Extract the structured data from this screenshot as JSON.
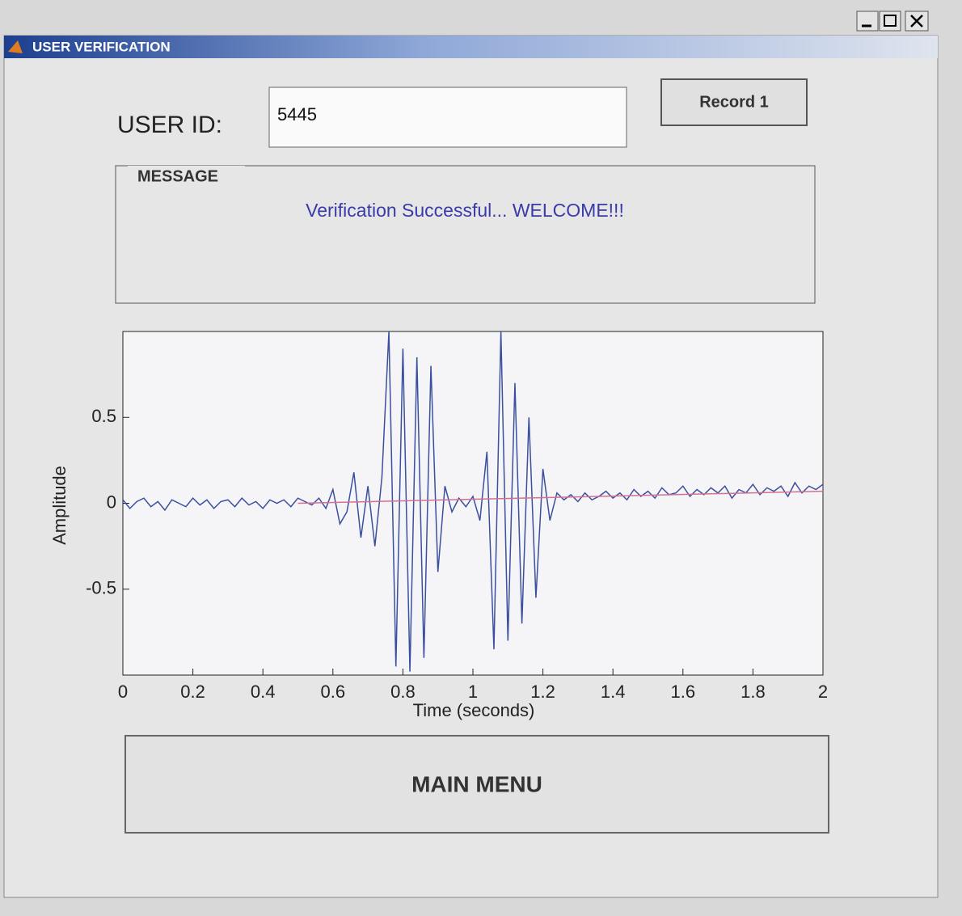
{
  "window": {
    "title": "USER VERIFICATION"
  },
  "user_id": {
    "label": "USER ID:",
    "value": "5445"
  },
  "record_button": {
    "label": "Record 1"
  },
  "message": {
    "title": "MESSAGE",
    "text": "Verification Successful... WELCOME!!!"
  },
  "chart_data": {
    "type": "line",
    "xlabel": "Time (seconds)",
    "ylabel": "Amplitude",
    "xlim": [
      0,
      2
    ],
    "ylim": [
      -1,
      1
    ],
    "xticks": [
      0,
      0.2,
      0.4,
      0.6,
      0.8,
      1,
      1.2,
      1.4,
      1.6,
      1.8,
      2
    ],
    "yticks": [
      -0.5,
      0,
      0.5
    ],
    "series": [
      {
        "color": "#3b4f9e",
        "x": [
          0,
          0.02,
          0.04,
          0.06,
          0.08,
          0.1,
          0.12,
          0.14,
          0.16,
          0.18,
          0.2,
          0.22,
          0.24,
          0.26,
          0.28,
          0.3,
          0.32,
          0.34,
          0.36,
          0.38,
          0.4,
          0.42,
          0.44,
          0.46,
          0.48,
          0.5,
          0.52,
          0.54,
          0.56,
          0.58,
          0.6,
          0.62,
          0.64,
          0.66,
          0.68,
          0.7,
          0.72,
          0.74,
          0.76,
          0.78,
          0.8,
          0.82,
          0.84,
          0.86,
          0.88,
          0.9,
          0.92,
          0.94,
          0.96,
          0.98,
          1,
          1.02,
          1.04,
          1.06,
          1.08,
          1.1,
          1.12,
          1.14,
          1.16,
          1.18,
          1.2,
          1.22,
          1.24,
          1.26,
          1.28,
          1.3,
          1.32,
          1.34,
          1.36,
          1.38,
          1.4,
          1.42,
          1.44,
          1.46,
          1.48,
          1.5,
          1.52,
          1.54,
          1.56,
          1.58,
          1.6,
          1.62,
          1.64,
          1.66,
          1.68,
          1.7,
          1.72,
          1.74,
          1.76,
          1.78,
          1.8,
          1.82,
          1.84,
          1.86,
          1.88,
          1.9,
          1.92,
          1.94,
          1.96,
          1.98,
          2
        ],
        "values": [
          0.02,
          -0.03,
          0.01,
          0.03,
          -0.02,
          0.01,
          -0.04,
          0.02,
          0.0,
          -0.02,
          0.03,
          -0.01,
          0.02,
          -0.03,
          0.01,
          0.02,
          -0.02,
          0.03,
          -0.01,
          0.01,
          -0.03,
          0.02,
          0.0,
          0.02,
          -0.02,
          0.03,
          0.01,
          -0.01,
          0.03,
          -0.03,
          0.08,
          -0.12,
          -0.05,
          0.18,
          -0.2,
          0.1,
          -0.25,
          0.15,
          1.0,
          -0.95,
          0.9,
          -0.98,
          0.85,
          -0.9,
          0.8,
          -0.4,
          0.1,
          -0.05,
          0.03,
          -0.02,
          0.04,
          -0.1,
          0.3,
          -0.85,
          1.0,
          -0.8,
          0.7,
          -0.7,
          0.5,
          -0.55,
          0.2,
          -0.1,
          0.06,
          0.02,
          0.05,
          0.01,
          0.06,
          0.02,
          0.04,
          0.07,
          0.03,
          0.06,
          0.02,
          0.08,
          0.04,
          0.07,
          0.03,
          0.09,
          0.05,
          0.06,
          0.1,
          0.04,
          0.08,
          0.05,
          0.09,
          0.06,
          0.1,
          0.03,
          0.08,
          0.06,
          0.11,
          0.05,
          0.09,
          0.07,
          0.1,
          0.04,
          0.12,
          0.06,
          0.1,
          0.08,
          0.11
        ]
      },
      {
        "color": "#d4708f",
        "x": [
          0.5,
          2
        ],
        "values": [
          0.0,
          0.07
        ]
      }
    ]
  },
  "main_menu_button": {
    "label": "MAIN MENU"
  }
}
